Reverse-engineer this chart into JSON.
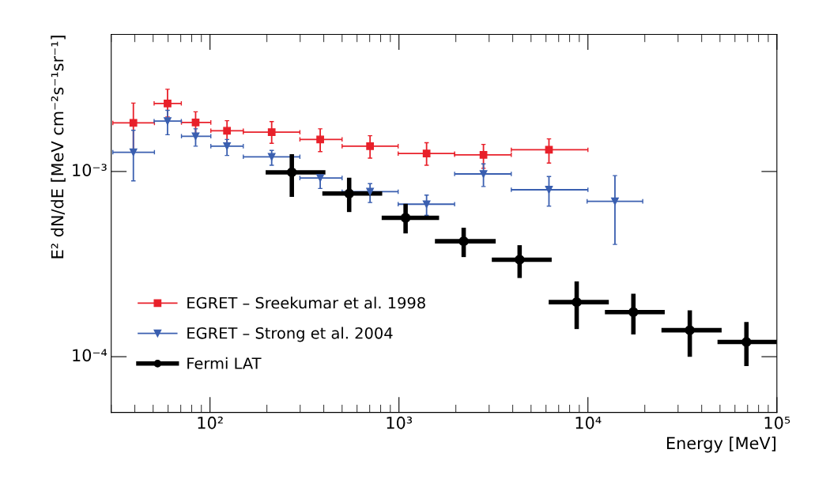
{
  "chart_data": {
    "type": "scatter",
    "xlabel": "Energy [MeV]",
    "ylabel": "E² dN/dE [MeV cm⁻²s⁻¹sr⁻¹]",
    "log": "xy",
    "grid": false,
    "legend": "bottom left",
    "xlim": [
      30,
      100000
    ],
    "ylim": [
      5e-05,
      0.0055
    ],
    "xticks": [
      {
        "value": 100,
        "label": "10²"
      },
      {
        "value": 1000,
        "label": "10³"
      },
      {
        "value": 10000,
        "label": "10⁴"
      },
      {
        "value": 100000,
        "label": "10⁵"
      }
    ],
    "yticks": [
      {
        "value": 0.0001,
        "label": "10⁻⁴"
      },
      {
        "value": 0.001,
        "label": "10⁻³"
      }
    ],
    "series": [
      {
        "name": "EGRET – Sreekumar et al. 1998",
        "color": "#e8202a",
        "marker": "square",
        "line_style": "solid",
        "x": [
          39.3,
          59.6,
          83.9,
          123,
          212,
          383,
          703,
          1400,
          2800,
          6220
        ],
        "values": [
          0.00183,
          0.00233,
          0.00184,
          0.00166,
          0.00163,
          0.00149,
          0.00137,
          0.00125,
          0.00123,
          0.00131
        ],
        "xerrors": [
          [
            30.6,
            50.8
          ],
          [
            50.6,
            70.5
          ],
          [
            70.6,
            101
          ],
          [
            101,
            150
          ],
          [
            150,
            299
          ],
          [
            299,
            500
          ],
          [
            500,
            990
          ],
          [
            990,
            1970
          ],
          [
            1970,
            3930
          ],
          [
            3930,
            10000
          ]
        ],
        "errors": [
          [
            0.00129,
            0.00234
          ],
          [
            0.00197,
            0.00278
          ],
          [
            0.0016,
            0.0021
          ],
          [
            0.00142,
            0.00188
          ],
          [
            0.00142,
            0.00186
          ],
          [
            0.00128,
            0.0017
          ],
          [
            0.00118,
            0.00156
          ],
          [
            0.00108,
            0.00143
          ],
          [
            0.00104,
            0.0014
          ],
          [
            0.00111,
            0.0015
          ]
        ]
      },
      {
        "name": "EGRET – Strong et al. 2004",
        "color": "#3a5fb0",
        "marker": "triangle",
        "line_style": "solid",
        "x": [
          39.3,
          59.6,
          83.9,
          123,
          212,
          383,
          703,
          1400,
          2800,
          6220,
          13900
        ],
        "values": [
          0.00127,
          0.00187,
          0.00155,
          0.00137,
          0.0012,
          0.000922,
          0.000778,
          0.000666,
          0.00097,
          0.000797,
          0.00069
        ],
        "xerrors": [
          [
            30.6,
            50.8
          ],
          [
            50.6,
            70.5
          ],
          [
            70.6,
            101
          ],
          [
            101,
            150
          ],
          [
            150,
            299
          ],
          [
            299,
            500
          ],
          [
            500,
            990
          ],
          [
            990,
            1970
          ],
          [
            1970,
            3930
          ],
          [
            3930,
            10000
          ],
          [
            9900,
            19500
          ]
        ],
        "errors": [
          [
            0.00089,
            0.00167
          ],
          [
            0.00158,
            0.00214
          ],
          [
            0.00137,
            0.0017
          ],
          [
            0.00122,
            0.00149
          ],
          [
            0.00108,
            0.0013
          ],
          [
            0.00081,
            0.001
          ],
          [
            0.00068,
            0.00086
          ],
          [
            0.00058,
            0.000746
          ],
          [
            0.00083,
            0.0011
          ],
          [
            0.00065,
            0.00094
          ],
          [
            0.000404,
            0.00095
          ]
        ]
      },
      {
        "name": "Fermi LAT",
        "color": "#000000",
        "marker": "circle",
        "line_style": "solid",
        "x": [
          271,
          545,
          1084,
          2200,
          4350,
          8720,
          17400,
          34600,
          69000
        ],
        "values": [
          0.00099,
          0.00076,
          0.000562,
          0.00042,
          0.000334,
          0.000197,
          0.000174,
          0.000139,
          0.00012
        ],
        "xerrors": [
          [
            197,
            408
          ],
          [
            393,
            815
          ],
          [
            810,
            1630
          ],
          [
            1550,
            3250
          ],
          [
            3100,
            6430
          ],
          [
            6200,
            12900
          ],
          [
            12300,
            25500
          ],
          [
            24500,
            51000
          ],
          [
            48500,
            100000
          ]
        ],
        "errors": [
          [
            0.00073,
            0.00124
          ],
          [
            0.000604,
            0.000925
          ],
          [
            0.000463,
            0.000669
          ],
          [
            0.000345,
            0.000497
          ],
          [
            0.000266,
            0.0004
          ],
          [
            0.000141,
            0.000255
          ],
          [
            0.000132,
            0.000219
          ],
          [
            0.0001,
            0.000178
          ],
          [
            8.9e-05,
            0.000154
          ]
        ]
      }
    ]
  }
}
